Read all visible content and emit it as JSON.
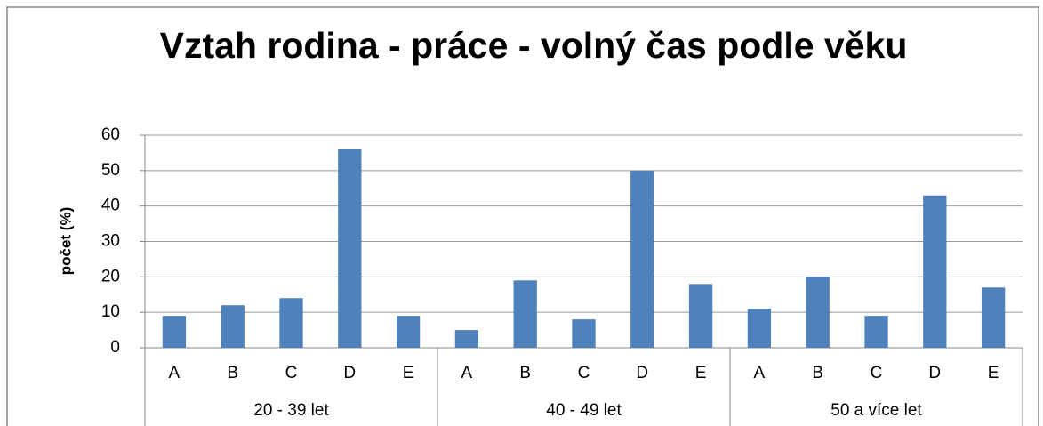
{
  "chart_data": {
    "type": "bar",
    "title": "Vztah rodina - práce - volný čas podle věku",
    "y_label": "počet (%)",
    "color": "#4f81bd",
    "groups": [
      {
        "label": "20 - 39 let",
        "categories": [
          "A",
          "B",
          "C",
          "D",
          "E"
        ],
        "values": [
          9,
          12,
          14,
          56,
          9
        ]
      },
      {
        "label": "40 - 49 let",
        "categories": [
          "A",
          "B",
          "C",
          "D",
          "E"
        ],
        "values": [
          5,
          19,
          8,
          50,
          18
        ]
      },
      {
        "label": "50 a více let",
        "categories": [
          "A",
          "B",
          "C",
          "D",
          "E"
        ],
        "values": [
          11,
          20,
          9,
          43,
          17
        ]
      }
    ],
    "ylim": [
      0,
      60
    ],
    "yticks": [
      0,
      10,
      20,
      30,
      40,
      50,
      60
    ],
    "grid": true
  }
}
